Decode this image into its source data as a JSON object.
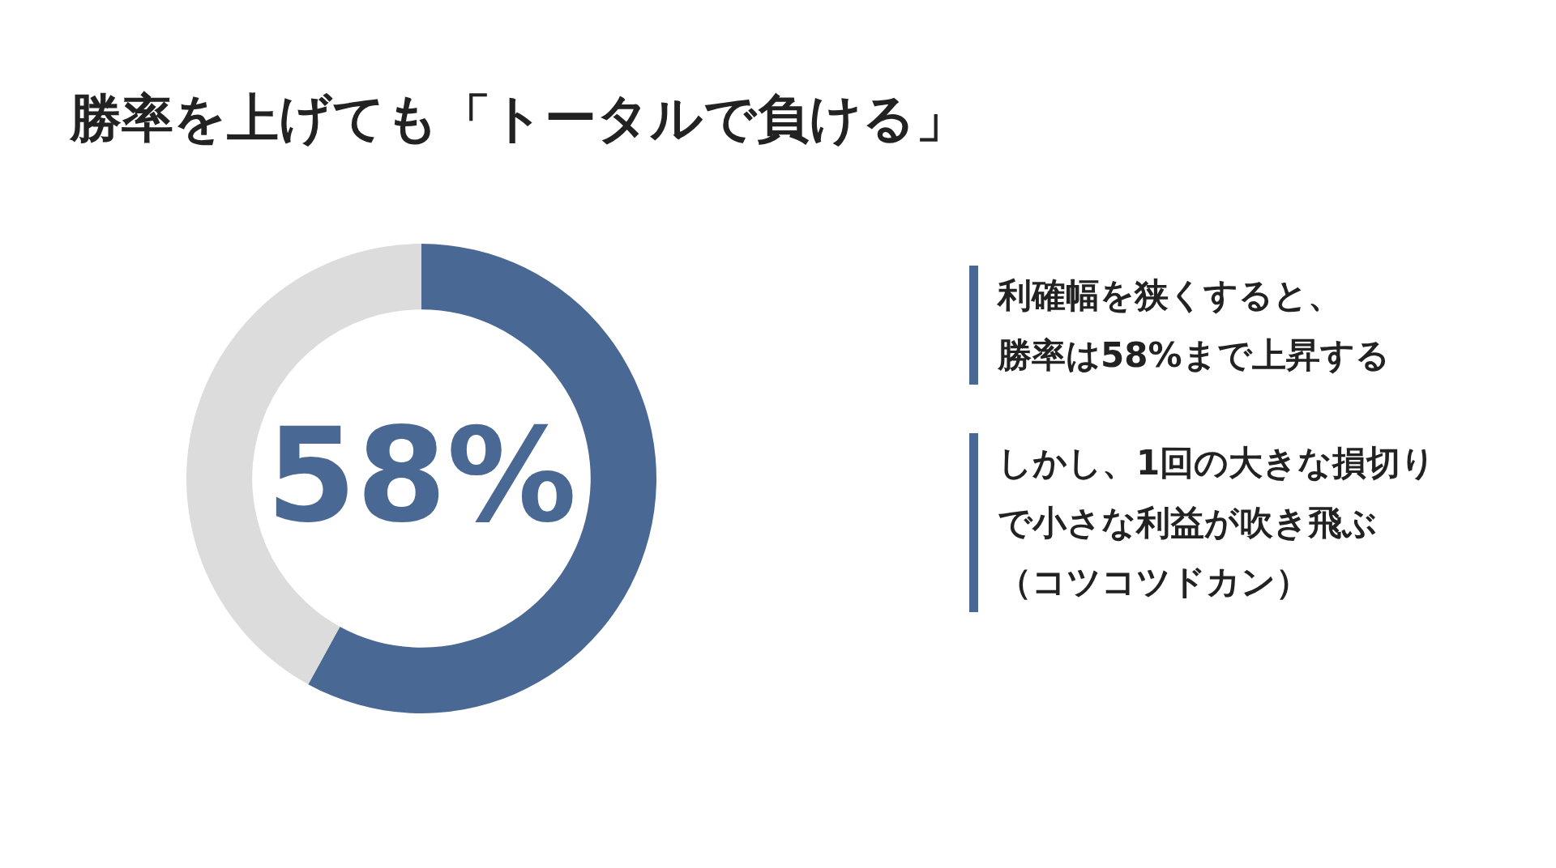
{
  "chart_data": {
    "type": "donut",
    "title": "勝率を上げても「トータルで負ける」",
    "categories": [
      null,
      null
    ],
    "values": [
      58,
      42
    ],
    "colors": [
      "#4a6894",
      "#dcdcdc"
    ],
    "value_labels": [
      "58%",
      null
    ],
    "legend": false,
    "annotations": [
      "利確幅を狭くすると、勝率は58%まで上昇する",
      "しかし、1回の大きな損切りで小さな利益が吹き飛ぶ（コツコツドカン）"
    ]
  }
}
